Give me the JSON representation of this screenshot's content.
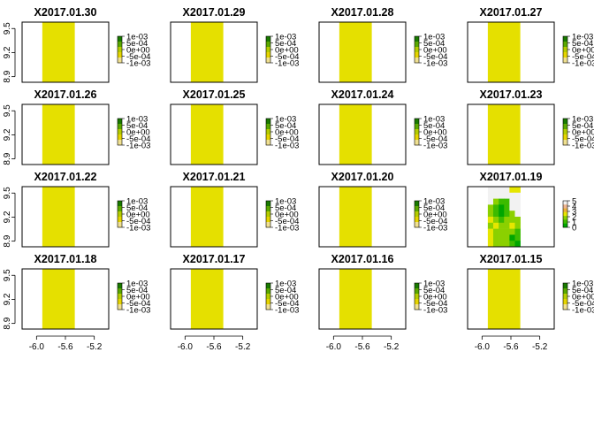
{
  "chart_data": {
    "type": "heatmap",
    "x_ticks": [
      -6.0,
      -5.6,
      -5.2
    ],
    "x_tick_labels": [
      "-6.0",
      "-5.6",
      "-5.2"
    ],
    "y_ticks": [
      8.9,
      9.2,
      9.5
    ],
    "y_tick_labels": [
      "8.9",
      "9.2",
      "9.5"
    ],
    "xlim": [
      -6.2,
      -5.0
    ],
    "ylim": [
      8.83,
      9.58
    ],
    "layer_extent": {
      "x": [
        -5.92,
        -5.47
      ],
      "y": [
        8.83,
        9.58
      ]
    },
    "fill_color": "#e5e000",
    "default_legend": [
      "1e-03",
      "5e-04",
      "0e+00",
      "-5e-04",
      "-1e-03"
    ],
    "panels": [
      {
        "title": "X2017.01.30",
        "type": "constant",
        "value": 0
      },
      {
        "title": "X2017.01.29",
        "type": "constant",
        "value": 0
      },
      {
        "title": "X2017.01.28",
        "type": "constant",
        "value": 0
      },
      {
        "title": "X2017.01.27",
        "type": "constant",
        "value": 0
      },
      {
        "title": "X2017.01.26",
        "type": "constant",
        "value": 0
      },
      {
        "title": "X2017.01.25",
        "type": "constant",
        "value": 0
      },
      {
        "title": "X2017.01.24",
        "type": "constant",
        "value": 0
      },
      {
        "title": "X2017.01.23",
        "type": "constant",
        "value": 0
      },
      {
        "title": "X2017.01.22",
        "type": "constant",
        "value": 0
      },
      {
        "title": "X2017.01.21",
        "type": "constant",
        "value": 0
      },
      {
        "title": "X2017.01.20",
        "type": "constant",
        "value": 0
      },
      {
        "title": "X2017.01.19",
        "type": "grid",
        "legend": [
          "5",
          "4",
          "3",
          "2",
          "1",
          "0"
        ]
      },
      {
        "title": "X2017.01.18",
        "type": "constant",
        "value": 0
      },
      {
        "title": "X2017.01.17",
        "type": "constant",
        "value": 0
      },
      {
        "title": "X2017.01.16",
        "type": "constant",
        "value": 0
      },
      {
        "title": "X2017.01.15",
        "type": "constant",
        "value": 0
      }
    ],
    "grid_panel": {
      "nrows": 10,
      "ncols": 6,
      "color_scale": [
        "#00a600",
        "#3cbb00",
        "#8bd000",
        "#e6e600",
        "#eab03b",
        "#edb48e",
        "#f2f2f2"
      ],
      "values": [
        [
          null,
          null,
          null,
          null,
          3.0,
          3.0
        ],
        [
          null,
          null,
          null,
          null,
          null,
          null
        ],
        [
          null,
          2.0,
          0.5,
          1.0,
          null,
          null
        ],
        [
          2.0,
          1.0,
          0.0,
          0.5,
          null,
          null
        ],
        [
          1.5,
          0.8,
          0.0,
          0.5,
          1.5,
          null
        ],
        [
          3.0,
          1.5,
          1.0,
          1.5,
          1.5,
          2.0
        ],
        [
          2.0,
          3.0,
          1.5,
          2.0,
          2.5,
          2.0
        ],
        [
          2.5,
          2.0,
          1.5,
          2.0,
          1.5,
          0.5
        ],
        [
          3.0,
          2.0,
          2.0,
          1.5,
          0.0,
          1.0
        ],
        [
          2.5,
          2.0,
          2.0,
          1.5,
          0.5,
          0.0
        ]
      ]
    }
  }
}
